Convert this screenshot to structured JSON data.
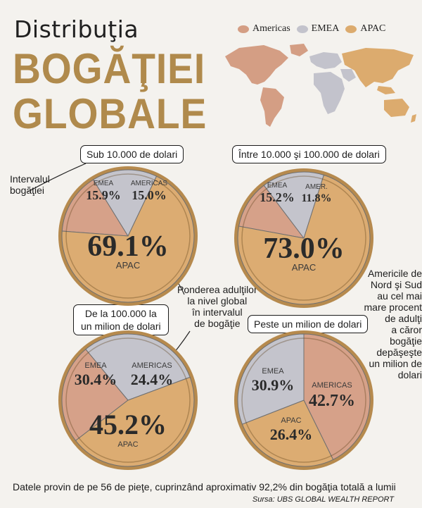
{
  "title": {
    "line1": "Distribuţia",
    "line2": "BOGĂŢIEI",
    "line3": "GLOBALE"
  },
  "legend": [
    {
      "label": "Americas",
      "color": "#d49e84"
    },
    {
      "label": "EMEA",
      "color": "#c3c3cc"
    },
    {
      "label": "APAC",
      "color": "#dcab6e"
    }
  ],
  "annotations": {
    "range_label": "Intervalul\nbogăţiei",
    "share_label": "Ponderea adulţilor\nla nivel global\nîn intervalul\nde bogăţie",
    "americas_note": "Americile de\nNord şi Sud\nau cel mai\nmare procent\nde adulţi\na căror bogăţie\ndepăşeşte\nun milion de\ndolari"
  },
  "footer": "Datele provin de pe 56 de pieţe, cuprinzând aproximativ 92,2% din bogăţia totală a lumii",
  "source": "Sursa: UBS GLOBAL WEALTH REPORT",
  "chart_data": [
    {
      "type": "pie",
      "title": "Sub 10.000 de dolari",
      "slices": [
        {
          "label": "APAC",
          "value": 69.1,
          "display": "69.1%"
        },
        {
          "label": "EMEA",
          "value": 15.9,
          "display": "15.9%"
        },
        {
          "label": "AMERICAS",
          "value": 15.0,
          "display": "15.0%"
        }
      ]
    },
    {
      "type": "pie",
      "title": "Între 10.000 şi 100.000 de dolari",
      "slices": [
        {
          "label": "APAC",
          "value": 73.0,
          "display": "73.0%"
        },
        {
          "label": "EMEA",
          "value": 15.2,
          "display": "15.2%"
        },
        {
          "label": "AMER.",
          "value": 11.8,
          "display": "11.8%"
        }
      ]
    },
    {
      "type": "pie",
      "title": "De la 100.000 la\nun milion de dolari",
      "slices": [
        {
          "label": "APAC",
          "value": 45.2,
          "display": "45.2%"
        },
        {
          "label": "EMEA",
          "value": 30.4,
          "display": "30.4%"
        },
        {
          "label": "AMERICAS",
          "value": 24.4,
          "display": "24.4%"
        }
      ]
    },
    {
      "type": "pie",
      "title": "Peste un milion de dolari",
      "slices": [
        {
          "label": "AMERICAS",
          "value": 42.7,
          "display": "42.7%"
        },
        {
          "label": "APAC",
          "value": 26.4,
          "display": "26.4%"
        },
        {
          "label": "EMEA",
          "value": 30.9,
          "display": "30.9%"
        }
      ]
    }
  ]
}
